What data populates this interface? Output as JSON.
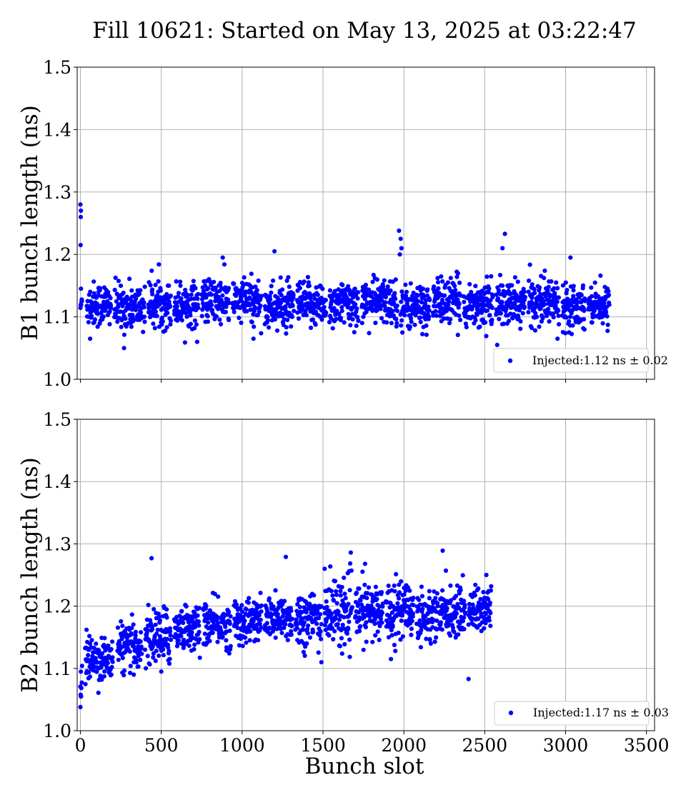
{
  "figure": {
    "title": "Fill 10621: Started on May 13, 2025 at 03:22:47",
    "xlabel": "Bunch slot"
  },
  "colors": {
    "marker": "#0000ff",
    "grid": "#b0b0b0",
    "axes": "#000000",
    "legend_border": "#cccccc"
  },
  "chart_data": [
    {
      "type": "scatter",
      "title": "",
      "xlabel": "",
      "ylabel": "B1 bunch length (ns)",
      "xlim": [
        -20,
        3550
      ],
      "ylim": [
        1.0,
        1.5
      ],
      "x_ticks": [
        0,
        500,
        1000,
        1500,
        2000,
        2500,
        3000,
        3500
      ],
      "y_ticks": [
        "1.0",
        "1.1",
        "1.2",
        "1.3",
        "1.4",
        "1.5"
      ],
      "x_tick_labels_shown": false,
      "grid": true,
      "legend": {
        "position": "lower-right",
        "label": "Injected:1.12 ns ± 0.02"
      },
      "series": [
        {
          "color": "#0000ff",
          "trains": [
            {
              "x_start": 0,
              "x_end": 10,
              "mean": 1.12,
              "spread": 0.02
            },
            {
              "x_start": 40,
              "x_end": 190,
              "mean": 1.12,
              "spread": 0.02
            },
            {
              "x_start": 210,
              "x_end": 400,
              "mean": 1.115,
              "spread": 0.02
            },
            {
              "x_start": 420,
              "x_end": 560,
              "mean": 1.12,
              "spread": 0.02
            },
            {
              "x_start": 580,
              "x_end": 730,
              "mean": 1.12,
              "spread": 0.02
            },
            {
              "x_start": 750,
              "x_end": 920,
              "mean": 1.125,
              "spread": 0.02
            },
            {
              "x_start": 940,
              "x_end": 1120,
              "mean": 1.125,
              "spread": 0.02
            },
            {
              "x_start": 1140,
              "x_end": 1320,
              "mean": 1.115,
              "spread": 0.02
            },
            {
              "x_start": 1340,
              "x_end": 1520,
              "mean": 1.12,
              "spread": 0.02
            },
            {
              "x_start": 1540,
              "x_end": 1720,
              "mean": 1.12,
              "spread": 0.02
            },
            {
              "x_start": 1740,
              "x_end": 1960,
              "mean": 1.125,
              "spread": 0.02
            },
            {
              "x_start": 1980,
              "x_end": 2160,
              "mean": 1.115,
              "spread": 0.02
            },
            {
              "x_start": 2180,
              "x_end": 2350,
              "mean": 1.125,
              "spread": 0.02
            },
            {
              "x_start": 2370,
              "x_end": 2550,
              "mean": 1.12,
              "spread": 0.02
            },
            {
              "x_start": 2570,
              "x_end": 2750,
              "mean": 1.12,
              "spread": 0.02
            },
            {
              "x_start": 2770,
              "x_end": 2960,
              "mean": 1.125,
              "spread": 0.02
            },
            {
              "x_start": 2980,
              "x_end": 3120,
              "mean": 1.12,
              "spread": 0.02
            },
            {
              "x_start": 3140,
              "x_end": 3270,
              "mean": 1.12,
              "spread": 0.015
            }
          ],
          "outliers": [
            [
              0,
              1.28
            ],
            [
              3,
              1.27
            ],
            [
              2,
              1.26
            ],
            [
              1,
              1.215
            ],
            [
              1970,
              1.238
            ],
            [
              1980,
              1.225
            ],
            [
              1985,
              1.21
            ],
            [
              1975,
              1.2
            ],
            [
              2625,
              1.233
            ],
            [
              2610,
              1.21
            ],
            [
              1200,
              1.205
            ],
            [
              3030,
              1.195
            ],
            [
              880,
              1.195
            ],
            [
              2950,
              1.065
            ],
            [
              2960,
              1.045
            ],
            [
              270,
              1.05
            ],
            [
              1070,
              1.065
            ],
            [
              60,
              1.065
            ]
          ]
        }
      ]
    },
    {
      "type": "scatter",
      "title": "",
      "xlabel": "Bunch slot",
      "ylabel": "B2 bunch length (ns)",
      "xlim": [
        -20,
        3550
      ],
      "ylim": [
        1.0,
        1.5
      ],
      "x_ticks": [
        0,
        500,
        1000,
        1500,
        2000,
        2500,
        3000,
        3500
      ],
      "x_tick_labels": [
        "0",
        "500",
        "1000",
        "1500",
        "2000",
        "2500",
        "3000",
        "3500"
      ],
      "y_ticks": [
        "1.0",
        "1.1",
        "1.2",
        "1.3",
        "1.4",
        "1.5"
      ],
      "x_tick_labels_shown": true,
      "grid": true,
      "legend": {
        "position": "lower-right",
        "label": "Injected:1.17 ns ± 0.03"
      },
      "series": [
        {
          "color": "#0000ff",
          "trains": [
            {
              "x_start": 0,
              "x_end": 10,
              "mean": 1.07,
              "spread": 0.02
            },
            {
              "x_start": 30,
              "x_end": 200,
              "mean": 1.115,
              "spread": 0.02
            },
            {
              "x_start": 230,
              "x_end": 380,
              "mean": 1.135,
              "spread": 0.02
            },
            {
              "x_start": 400,
              "x_end": 560,
              "mean": 1.15,
              "spread": 0.025
            },
            {
              "x_start": 580,
              "x_end": 740,
              "mean": 1.165,
              "spread": 0.02
            },
            {
              "x_start": 760,
              "x_end": 930,
              "mean": 1.17,
              "spread": 0.02
            },
            {
              "x_start": 950,
              "x_end": 1120,
              "mean": 1.175,
              "spread": 0.02
            },
            {
              "x_start": 1140,
              "x_end": 1310,
              "mean": 1.18,
              "spread": 0.02
            },
            {
              "x_start": 1330,
              "x_end": 1490,
              "mean": 1.18,
              "spread": 0.025
            },
            {
              "x_start": 1510,
              "x_end": 1680,
              "mean": 1.19,
              "spread": 0.03
            },
            {
              "x_start": 1700,
              "x_end": 1870,
              "mean": 1.19,
              "spread": 0.025
            },
            {
              "x_start": 1890,
              "x_end": 2060,
              "mean": 1.195,
              "spread": 0.025
            },
            {
              "x_start": 2080,
              "x_end": 2210,
              "mean": 1.185,
              "spread": 0.025
            },
            {
              "x_start": 2220,
              "x_end": 2380,
              "mean": 1.19,
              "spread": 0.02
            },
            {
              "x_start": 2400,
              "x_end": 2540,
              "mean": 1.195,
              "spread": 0.02
            }
          ],
          "outliers": [
            [
              0,
              1.038
            ],
            [
              3,
              1.055
            ],
            [
              440,
              1.277
            ],
            [
              1270,
              1.279
            ],
            [
              2240,
              1.289
            ],
            [
              2400,
              1.083
            ],
            [
              1760,
              1.268
            ],
            [
              1510,
              1.26
            ],
            [
              1490,
              1.11
            ],
            [
              1920,
              1.115
            ],
            [
              2260,
              1.257
            ],
            [
              330,
              1.09
            ],
            [
              500,
              1.095
            ],
            [
              2510,
              1.25
            ]
          ]
        }
      ]
    }
  ]
}
